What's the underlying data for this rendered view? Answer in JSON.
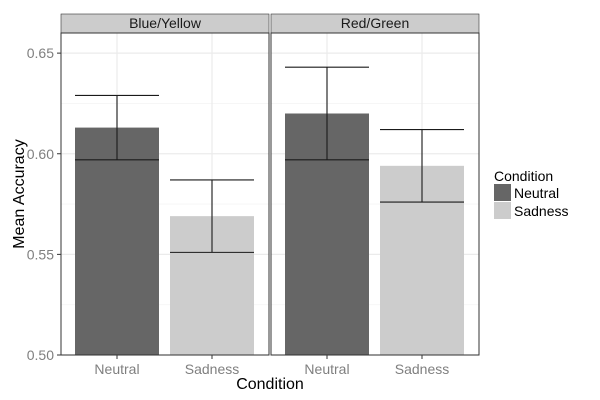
{
  "chart_data": {
    "type": "bar",
    "xlabel": "Condition",
    "ylabel": "Mean Accuracy",
    "ylim": [
      0.5,
      0.66
    ],
    "yticks": [
      "0.50",
      "0.55",
      "0.60",
      "0.65"
    ],
    "ytick_values": [
      0.5,
      0.55,
      0.6,
      0.65
    ],
    "categories": [
      "Neutral",
      "Sadness"
    ],
    "grid": true,
    "legend": {
      "title": "Condition",
      "placement": "right",
      "entries": [
        "Neutral",
        "Sadness"
      ]
    },
    "colors": {
      "Neutral": "#666666",
      "Sadness": "#cccccc",
      "strip_bg": "#cccccc",
      "grid": "#ebebeb",
      "panel_border": "#333333",
      "errorbar": "#1a1a1a"
    },
    "panels": [
      {
        "name": "Blue/Yellow",
        "bars": [
          {
            "category": "Neutral",
            "value": 0.613,
            "error_low": 0.597,
            "error_high": 0.629
          },
          {
            "category": "Sadness",
            "value": 0.569,
            "error_low": 0.551,
            "error_high": 0.587
          }
        ]
      },
      {
        "name": "Red/Green",
        "bars": [
          {
            "category": "Neutral",
            "value": 0.62,
            "error_low": 0.597,
            "error_high": 0.643
          },
          {
            "category": "Sadness",
            "value": 0.594,
            "error_low": 0.576,
            "error_high": 0.612
          }
        ]
      }
    ]
  }
}
